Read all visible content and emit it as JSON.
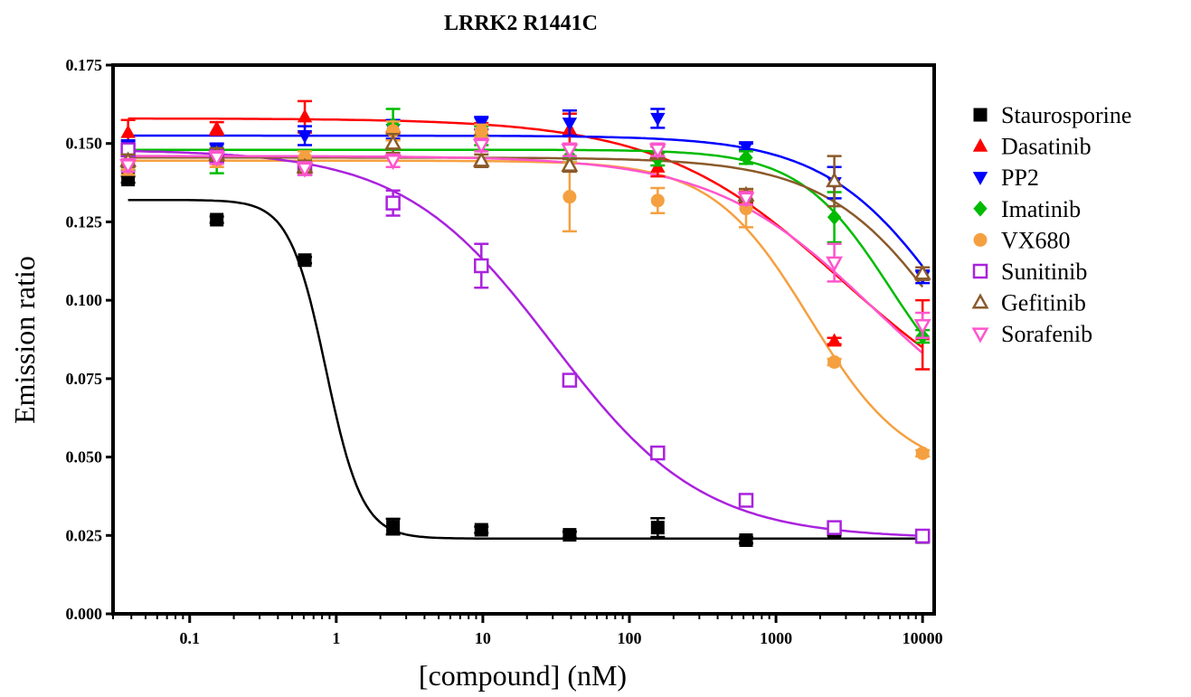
{
  "chart_data": {
    "type": "scatter",
    "title": "LRRK2 R1441C",
    "xlabel": "[compound] (nM)",
    "ylabel": "Emission ratio",
    "x_scale": "log",
    "xlim": [
      0.03,
      12000
    ],
    "ylim": [
      0.0,
      0.175
    ],
    "x_ticks": [
      0.1,
      1,
      10,
      100,
      1000,
      10000
    ],
    "x_tick_labels": [
      "0.1",
      "1",
      "10",
      "100",
      "1000",
      "10000"
    ],
    "y_ticks": [
      0.0,
      0.025,
      0.05,
      0.075,
      0.1,
      0.125,
      0.15,
      0.175
    ],
    "y_tick_labels": [
      "0.000",
      "0.025",
      "0.050",
      "0.075",
      "0.100",
      "0.125",
      "0.150",
      "0.175"
    ],
    "grid": false,
    "legend_position": "right",
    "x": [
      0.038,
      0.153,
      0.61,
      2.44,
      9.77,
      39.1,
      156,
      625,
      2500,
      10000
    ],
    "series": [
      {
        "name": "Staurosporine",
        "color": "#000000",
        "marker": "square-filled",
        "values": [
          0.1385,
          0.1257,
          0.1128,
          0.0278,
          0.0268,
          0.0252,
          0.0275,
          0.0235,
          0.026,
          0.0245
        ],
        "errors": [
          0.001,
          0.001,
          0.001,
          0.0025,
          0.001,
          0.001,
          0.003,
          0.001,
          0.001,
          0.001
        ],
        "fit": {
          "top": 0.132,
          "bottom": 0.024,
          "ec50": 0.85,
          "hill": 3.5
        }
      },
      {
        "name": "Dasatinib",
        "color": "#ff0000",
        "marker": "triangle-up-filled",
        "values": [
          0.1535,
          0.1548,
          0.1585,
          0.1555,
          0.1545,
          0.1545,
          0.1425,
          0.133,
          0.087,
          0.089
        ],
        "errors": [
          0.004,
          0.002,
          0.005,
          0.002,
          0.002,
          0.005,
          0.003,
          0.002,
          0.001,
          0.011
        ],
        "fit": {
          "top": 0.158,
          "bottom": 0.055,
          "ec50": 2800,
          "hill": 0.7
        }
      },
      {
        "name": "PP2",
        "color": "#0000ff",
        "marker": "triangle-down-filled",
        "values": [
          0.149,
          0.148,
          0.1525,
          0.1545,
          0.1565,
          0.1565,
          0.158,
          0.149,
          0.1375,
          0.1075
        ],
        "errors": [
          0.002,
          0.002,
          0.003,
          0.003,
          0.002,
          0.004,
          0.003,
          0.001,
          0.005,
          0.002
        ],
        "fit": {
          "top": 0.1525,
          "bottom": 0.04,
          "ec50": 17000,
          "hill": 1.0
        }
      },
      {
        "name": "Imatinib",
        "color": "#00bb00",
        "marker": "diamond-filled",
        "values": [
          0.1445,
          0.1445,
          0.143,
          0.156,
          0.1525,
          0.146,
          0.145,
          0.1455,
          0.1265,
          0.0885
        ],
        "errors": [
          0.003,
          0.004,
          0.002,
          0.005,
          0.003,
          0.002,
          0.002,
          0.002,
          0.008,
          0.002
        ],
        "fit": {
          "top": 0.148,
          "bottom": 0.06,
          "ec50": 6000,
          "hill": 1.4
        }
      },
      {
        "name": "VX680",
        "color": "#f5a040",
        "marker": "circle-filled",
        "values": [
          0.142,
          0.1445,
          0.1455,
          0.154,
          0.154,
          0.133,
          0.1318,
          0.1293,
          0.0803,
          0.0512
        ],
        "errors": [
          0.002,
          0.002,
          0.002,
          0.003,
          0.002,
          0.011,
          0.004,
          0.006,
          0.001,
          0.001
        ],
        "fit": {
          "top": 0.1445,
          "bottom": 0.044,
          "ec50": 1700,
          "hill": 1.3
        }
      },
      {
        "name": "Sunitinib",
        "color": "#aa22dd",
        "marker": "square-open",
        "values": [
          0.148,
          0.146,
          0.142,
          0.131,
          0.111,
          0.0745,
          0.0513,
          0.0362,
          0.0275,
          0.0248
        ],
        "errors": [
          0.002,
          0.002,
          0.002,
          0.004,
          0.007,
          0.001,
          0.001,
          0.001,
          0.001,
          0.001
        ],
        "fit": {
          "top": 0.148,
          "bottom": 0.024,
          "ec50": 30,
          "hill": 0.85
        }
      },
      {
        "name": "Gefitinib",
        "color": "#8b5a2b",
        "marker": "triangle-up-open",
        "values": [
          0.1445,
          0.1465,
          0.1425,
          0.15,
          0.1445,
          0.143,
          0.147,
          0.1335,
          0.138,
          0.1085
        ],
        "errors": [
          0.002,
          0.002,
          0.002,
          0.003,
          0.002,
          0.002,
          0.002,
          0.002,
          0.008,
          0.002
        ],
        "fit": {
          "top": 0.1455,
          "bottom": 0.03,
          "ec50": 18000,
          "hill": 1.0
        }
      },
      {
        "name": "Sorafenib",
        "color": "#ff55cc",
        "marker": "triangle-down-open",
        "values": [
          0.143,
          0.1455,
          0.142,
          0.1445,
          0.1495,
          0.148,
          0.148,
          0.1325,
          0.112,
          0.092
        ],
        "errors": [
          0.002,
          0.002,
          0.002,
          0.002,
          0.002,
          0.002,
          0.002,
          0.002,
          0.006,
          0.004
        ],
        "fit": {
          "top": 0.146,
          "bottom": 0.05,
          "ec50": 4500,
          "hill": 0.8
        }
      }
    ]
  }
}
